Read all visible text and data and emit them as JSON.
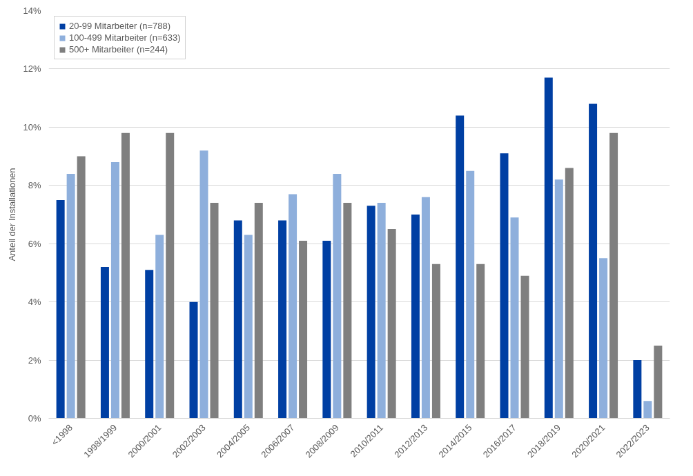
{
  "chart_data": {
    "type": "bar",
    "ylabel": "Anteil der Installationen",
    "categories": [
      "<1998",
      "1998/1999",
      "2000/2001",
      "2002/2003",
      "2004/2005",
      "2006/2007",
      "2008/2009",
      "2010/2011",
      "2012/2013",
      "2014/2015",
      "2016/2017",
      "2018/2019",
      "2020/2021",
      "2022/2023"
    ],
    "series": [
      {
        "name": "20-99 Mitarbeiter (n=788)",
        "color": "#003fa3",
        "values": [
          7.5,
          5.2,
          5.1,
          4.0,
          6.8,
          6.8,
          6.1,
          7.3,
          7.0,
          10.4,
          9.1,
          11.7,
          10.8,
          2.0
        ]
      },
      {
        "name": "100-499 Mitarbeiter (n=633)",
        "color": "#8eafdc",
        "values": [
          8.4,
          8.8,
          6.3,
          9.2,
          6.3,
          7.7,
          8.4,
          7.4,
          7.6,
          8.5,
          6.9,
          8.2,
          5.5,
          0.6
        ]
      },
      {
        "name": "500+ Mitarbeiter (n=244)",
        "color": "#7f7f7f",
        "values": [
          9.0,
          9.8,
          9.8,
          7.4,
          7.4,
          6.1,
          7.4,
          6.5,
          5.3,
          5.3,
          4.9,
          8.6,
          9.8,
          2.5
        ]
      }
    ],
    "ylim": [
      0,
      14
    ],
    "yticks": [
      {
        "value": 0,
        "label": "0%"
      },
      {
        "value": 2,
        "label": "2%"
      },
      {
        "value": 4,
        "label": "4%"
      },
      {
        "value": 6,
        "label": "6%"
      },
      {
        "value": 8,
        "label": "8%"
      },
      {
        "value": 10,
        "label": "10%"
      },
      {
        "value": 12,
        "label": "12%"
      },
      {
        "value": 14,
        "label": "14%"
      }
    ],
    "grid": "y",
    "legend": "top left"
  }
}
